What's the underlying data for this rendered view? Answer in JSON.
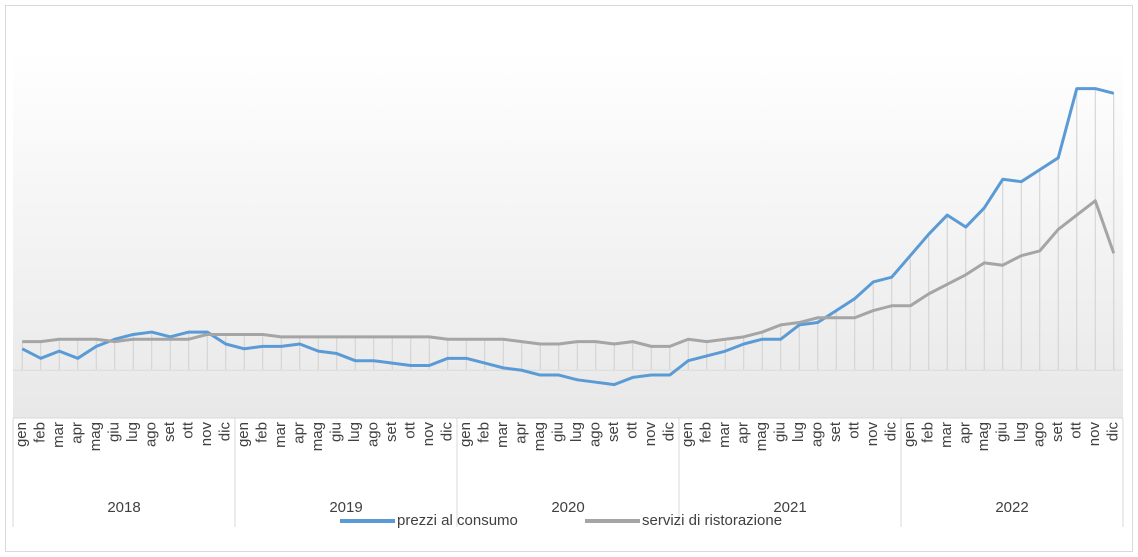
{
  "chart_data": {
    "type": "line",
    "categories": [
      "gen",
      "feb",
      "mar",
      "apr",
      "mag",
      "giu",
      "lug",
      "ago",
      "set",
      "ott",
      "nov",
      "dic",
      "gen",
      "feb",
      "mar",
      "apr",
      "mag",
      "giu",
      "lug",
      "ago",
      "set",
      "ott",
      "nov",
      "dic",
      "gen",
      "feb",
      "mar",
      "apr",
      "mag",
      "giu",
      "lug",
      "ago",
      "set",
      "ott",
      "nov",
      "dic",
      "gen",
      "feb",
      "mar",
      "apr",
      "mag",
      "giu",
      "lug",
      "ago",
      "set",
      "ott",
      "nov",
      "dic",
      "gen",
      "feb",
      "mar",
      "apr",
      "mag",
      "giu",
      "lug",
      "ago",
      "set",
      "ott",
      "nov",
      "dic"
    ],
    "category_groups": [
      "2018",
      "2019",
      "2020",
      "2021",
      "2022"
    ],
    "series": [
      {
        "name": "prezzi al consumo",
        "color": "#5b9bd5",
        "values": [
          0.9,
          0.5,
          0.8,
          0.5,
          1.0,
          1.3,
          1.5,
          1.6,
          1.4,
          1.6,
          1.6,
          1.1,
          0.9,
          1.0,
          1.0,
          1.1,
          0.8,
          0.7,
          0.4,
          0.4,
          0.3,
          0.2,
          0.2,
          0.5,
          0.5,
          0.3,
          0.1,
          0.0,
          -0.2,
          -0.2,
          -0.4,
          -0.5,
          -0.6,
          -0.3,
          -0.2,
          -0.2,
          0.4,
          0.6,
          0.8,
          1.1,
          1.3,
          1.3,
          1.9,
          2.0,
          2.5,
          3.0,
          3.7,
          3.9,
          4.8,
          5.7,
          6.5,
          6.0,
          6.8,
          8.0,
          7.9,
          8.4,
          8.9,
          11.8,
          11.8,
          11.6
        ]
      },
      {
        "name": "servizi di ristorazione",
        "color": "#a5a5a5",
        "values": [
          1.2,
          1.2,
          1.3,
          1.3,
          1.3,
          1.2,
          1.3,
          1.3,
          1.3,
          1.3,
          1.5,
          1.5,
          1.5,
          1.5,
          1.4,
          1.4,
          1.4,
          1.4,
          1.4,
          1.4,
          1.4,
          1.4,
          1.4,
          1.3,
          1.3,
          1.3,
          1.3,
          1.2,
          1.1,
          1.1,
          1.2,
          1.2,
          1.1,
          1.2,
          1.0,
          1.0,
          1.3,
          1.2,
          1.3,
          1.4,
          1.6,
          1.9,
          2.0,
          2.2,
          2.2,
          2.2,
          2.5,
          2.7,
          2.7,
          3.2,
          3.6,
          4.0,
          4.5,
          4.4,
          4.8,
          5.0,
          5.9,
          6.5,
          7.1,
          4.9
        ]
      }
    ],
    "ylim": [
      -2,
      13.5
    ],
    "drop_lines": true,
    "legend": "bottom"
  }
}
